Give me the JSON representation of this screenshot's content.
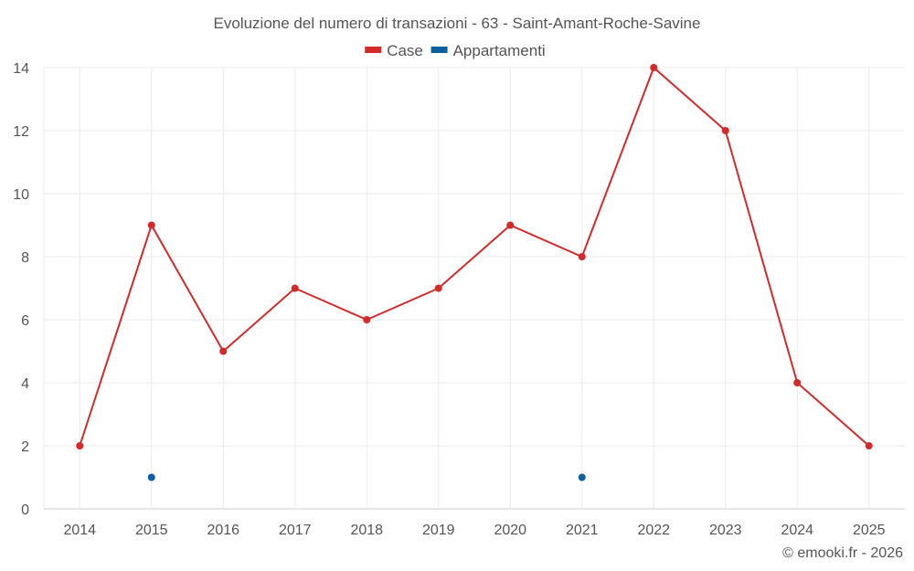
{
  "chart_data": {
    "type": "line",
    "title": "Evoluzione del numero di transazioni - 63 - Saint-Amant-Roche-Savine",
    "xlabel": "",
    "ylabel": "",
    "categories": [
      "2014",
      "2015",
      "2016",
      "2017",
      "2018",
      "2019",
      "2020",
      "2021",
      "2022",
      "2023",
      "2024",
      "2025"
    ],
    "ylim": [
      0,
      14
    ],
    "yticks": [
      0,
      2,
      4,
      6,
      8,
      10,
      12,
      14
    ],
    "grid": true,
    "legend_position": "top-center",
    "series": [
      {
        "name": "Case",
        "color": "#d42a2a",
        "line": true,
        "values": [
          2,
          9,
          5,
          7,
          6,
          7,
          9,
          8,
          14,
          12,
          4,
          2
        ]
      },
      {
        "name": "Appartamenti",
        "color": "#0a5fa0",
        "line": false,
        "values": [
          null,
          1,
          null,
          null,
          null,
          null,
          null,
          1,
          null,
          null,
          null,
          null
        ]
      }
    ],
    "credit": "© emooki.fr - 2026"
  }
}
